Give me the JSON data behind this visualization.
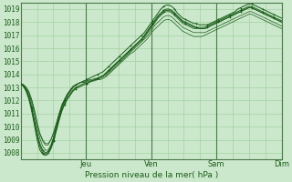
{
  "title": "Pression niveau de la mer( hPa )",
  "ylabel_values": [
    1008,
    1009,
    1010,
    1011,
    1012,
    1013,
    1014,
    1015,
    1016,
    1017,
    1018,
    1019
  ],
  "ylim": [
    1007.5,
    1019.5
  ],
  "xlim": [
    0,
    96
  ],
  "day_ticks": [
    24,
    48,
    72,
    96
  ],
  "day_labels": [
    "Jeu",
    "Ven",
    "Sam",
    "Dim"
  ],
  "vlines": [
    24,
    48,
    72,
    96
  ],
  "bg_color": "#cce8cc",
  "grid_color": "#99cc99",
  "line_color": "#1a5c1a",
  "n_series": 6,
  "series": [
    [
      1013.3,
      1013.1,
      1012.8,
      1012.3,
      1011.5,
      1010.5,
      1009.5,
      1008.7,
      1008.2,
      1008.0,
      1008.1,
      1008.5,
      1009.2,
      1010.0,
      1010.8,
      1011.5,
      1012.0,
      1012.4,
      1012.7,
      1013.0,
      1013.2,
      1013.3,
      1013.4,
      1013.5,
      1013.6,
      1013.7,
      1013.8,
      1013.9,
      1014.0,
      1014.1,
      1014.2,
      1014.4,
      1014.6,
      1014.8,
      1015.0,
      1015.2,
      1015.4,
      1015.6,
      1015.8,
      1016.0,
      1016.2,
      1016.4,
      1016.6,
      1016.8,
      1017.0,
      1017.2,
      1017.5,
      1017.8,
      1018.1,
      1018.4,
      1018.7,
      1019.0,
      1019.2,
      1019.3,
      1019.3,
      1019.2,
      1019.0,
      1018.7,
      1018.5,
      1018.3,
      1018.2,
      1018.1,
      1018.0,
      1017.9,
      1017.9,
      1017.8,
      1017.8,
      1017.8,
      1017.8,
      1017.9,
      1018.0,
      1018.1,
      1018.2,
      1018.3,
      1018.4,
      1018.5,
      1018.6,
      1018.7,
      1018.8,
      1019.0,
      1019.1,
      1019.2,
      1019.3,
      1019.4,
      1019.4,
      1019.3,
      1019.2,
      1019.1,
      1019.0,
      1018.9,
      1018.8,
      1018.7,
      1018.6,
      1018.5,
      1018.4,
      1018.3
    ],
    [
      1013.3,
      1013.1,
      1012.8,
      1012.2,
      1011.4,
      1010.4,
      1009.3,
      1008.5,
      1008.0,
      1007.9,
      1008.0,
      1008.4,
      1009.0,
      1009.8,
      1010.6,
      1011.3,
      1011.8,
      1012.2,
      1012.5,
      1012.8,
      1013.0,
      1013.1,
      1013.2,
      1013.3,
      1013.3,
      1013.4,
      1013.5,
      1013.6,
      1013.7,
      1013.8,
      1013.9,
      1014.1,
      1014.3,
      1014.5,
      1014.7,
      1014.9,
      1015.1,
      1015.3,
      1015.5,
      1015.7,
      1015.9,
      1016.1,
      1016.3,
      1016.5,
      1016.7,
      1017.0,
      1017.3,
      1017.6,
      1017.9,
      1018.2,
      1018.5,
      1018.7,
      1018.9,
      1019.0,
      1019.0,
      1018.9,
      1018.7,
      1018.5,
      1018.3,
      1018.1,
      1018.0,
      1017.9,
      1017.8,
      1017.7,
      1017.6,
      1017.6,
      1017.6,
      1017.6,
      1017.7,
      1017.8,
      1017.9,
      1018.0,
      1018.1,
      1018.2,
      1018.3,
      1018.4,
      1018.5,
      1018.6,
      1018.7,
      1018.8,
      1018.9,
      1019.0,
      1019.1,
      1019.2,
      1019.2,
      1019.1,
      1019.0,
      1018.9,
      1018.8,
      1018.7,
      1018.6,
      1018.5,
      1018.4,
      1018.3,
      1018.2,
      1018.1
    ],
    [
      1013.3,
      1013.1,
      1012.7,
      1012.1,
      1011.2,
      1010.1,
      1009.0,
      1008.2,
      1007.9,
      1007.8,
      1007.9,
      1008.3,
      1008.9,
      1009.7,
      1010.5,
      1011.2,
      1011.7,
      1012.1,
      1012.4,
      1012.7,
      1012.9,
      1013.0,
      1013.1,
      1013.2,
      1013.3,
      1013.4,
      1013.5,
      1013.6,
      1013.7,
      1013.8,
      1013.9,
      1014.1,
      1014.3,
      1014.5,
      1014.7,
      1014.9,
      1015.1,
      1015.3,
      1015.5,
      1015.7,
      1015.9,
      1016.1,
      1016.3,
      1016.5,
      1016.7,
      1016.9,
      1017.2,
      1017.5,
      1017.8,
      1018.1,
      1018.4,
      1018.6,
      1018.8,
      1018.9,
      1018.9,
      1018.8,
      1018.6,
      1018.4,
      1018.2,
      1018.0,
      1017.9,
      1017.8,
      1017.7,
      1017.6,
      1017.6,
      1017.5,
      1017.5,
      1017.5,
      1017.6,
      1017.7,
      1017.8,
      1017.9,
      1018.0,
      1018.1,
      1018.2,
      1018.3,
      1018.4,
      1018.5,
      1018.6,
      1018.7,
      1018.8,
      1018.9,
      1019.0,
      1019.1,
      1019.1,
      1019.0,
      1018.9,
      1018.8,
      1018.7,
      1018.6,
      1018.5,
      1018.4,
      1018.3,
      1018.2,
      1018.1,
      1018.0
    ],
    [
      1013.3,
      1013.2,
      1012.9,
      1012.5,
      1011.8,
      1010.9,
      1009.9,
      1009.1,
      1008.5,
      1008.2,
      1008.2,
      1008.6,
      1009.2,
      1010.0,
      1010.8,
      1011.5,
      1012.0,
      1012.4,
      1012.7,
      1013.0,
      1013.2,
      1013.3,
      1013.4,
      1013.5,
      1013.5,
      1013.6,
      1013.6,
      1013.7,
      1013.7,
      1013.8,
      1013.9,
      1014.0,
      1014.2,
      1014.4,
      1014.6,
      1014.8,
      1015.0,
      1015.2,
      1015.4,
      1015.6,
      1015.8,
      1016.0,
      1016.2,
      1016.4,
      1016.6,
      1016.8,
      1017.1,
      1017.4,
      1017.7,
      1018.0,
      1018.3,
      1018.5,
      1018.7,
      1018.8,
      1018.8,
      1018.7,
      1018.5,
      1018.3,
      1018.1,
      1017.9,
      1017.8,
      1017.7,
      1017.6,
      1017.5,
      1017.5,
      1017.5,
      1017.5,
      1017.5,
      1017.6,
      1017.7,
      1017.8,
      1017.9,
      1018.0,
      1018.1,
      1018.2,
      1018.3,
      1018.4,
      1018.5,
      1018.6,
      1018.7,
      1018.8,
      1018.9,
      1019.0,
      1019.1,
      1019.1,
      1019.0,
      1018.9,
      1018.8,
      1018.7,
      1018.6,
      1018.5,
      1018.4,
      1018.3,
      1018.2,
      1018.1,
      1018.0
    ],
    [
      1013.3,
      1013.2,
      1013.0,
      1012.6,
      1012.0,
      1011.2,
      1010.2,
      1009.4,
      1008.9,
      1008.6,
      1008.6,
      1009.0,
      1009.5,
      1010.2,
      1011.0,
      1011.6,
      1012.1,
      1012.5,
      1012.8,
      1013.1,
      1013.2,
      1013.3,
      1013.4,
      1013.4,
      1013.5,
      1013.5,
      1013.5,
      1013.6,
      1013.6,
      1013.7,
      1013.8,
      1013.9,
      1014.1,
      1014.3,
      1014.5,
      1014.7,
      1014.9,
      1015.1,
      1015.3,
      1015.5,
      1015.7,
      1015.9,
      1016.1,
      1016.3,
      1016.5,
      1016.7,
      1016.9,
      1017.2,
      1017.5,
      1017.8,
      1018.0,
      1018.2,
      1018.4,
      1018.5,
      1018.5,
      1018.4,
      1018.2,
      1018.0,
      1017.8,
      1017.6,
      1017.5,
      1017.4,
      1017.3,
      1017.2,
      1017.2,
      1017.2,
      1017.2,
      1017.2,
      1017.3,
      1017.4,
      1017.5,
      1017.6,
      1017.7,
      1017.8,
      1017.9,
      1018.0,
      1018.1,
      1018.2,
      1018.3,
      1018.4,
      1018.5,
      1018.6,
      1018.7,
      1018.8,
      1018.8,
      1018.7,
      1018.6,
      1018.5,
      1018.4,
      1018.3,
      1018.2,
      1018.1,
      1018.0,
      1017.9,
      1017.8,
      1017.7
    ],
    [
      1013.3,
      1013.2,
      1013.0,
      1012.7,
      1012.1,
      1011.3,
      1010.3,
      1009.5,
      1009.0,
      1008.7,
      1008.7,
      1009.0,
      1009.6,
      1010.3,
      1011.0,
      1011.7,
      1012.1,
      1012.5,
      1012.8,
      1013.0,
      1013.2,
      1013.3,
      1013.4,
      1013.4,
      1013.4,
      1013.5,
      1013.5,
      1013.5,
      1013.6,
      1013.6,
      1013.7,
      1013.8,
      1014.0,
      1014.2,
      1014.4,
      1014.6,
      1014.8,
      1015.0,
      1015.2,
      1015.4,
      1015.6,
      1015.7,
      1015.9,
      1016.1,
      1016.3,
      1016.5,
      1016.7,
      1017.0,
      1017.3,
      1017.5,
      1017.7,
      1017.9,
      1018.1,
      1018.2,
      1018.2,
      1018.1,
      1017.9,
      1017.7,
      1017.5,
      1017.3,
      1017.2,
      1017.1,
      1017.0,
      1016.9,
      1016.9,
      1016.9,
      1016.9,
      1017.0,
      1017.1,
      1017.2,
      1017.3,
      1017.4,
      1017.5,
      1017.6,
      1017.7,
      1017.8,
      1017.9,
      1018.0,
      1018.1,
      1018.2,
      1018.3,
      1018.4,
      1018.5,
      1018.6,
      1018.6,
      1018.5,
      1018.4,
      1018.3,
      1018.2,
      1018.1,
      1018.0,
      1017.9,
      1017.8,
      1017.7,
      1017.6,
      1017.5
    ]
  ]
}
